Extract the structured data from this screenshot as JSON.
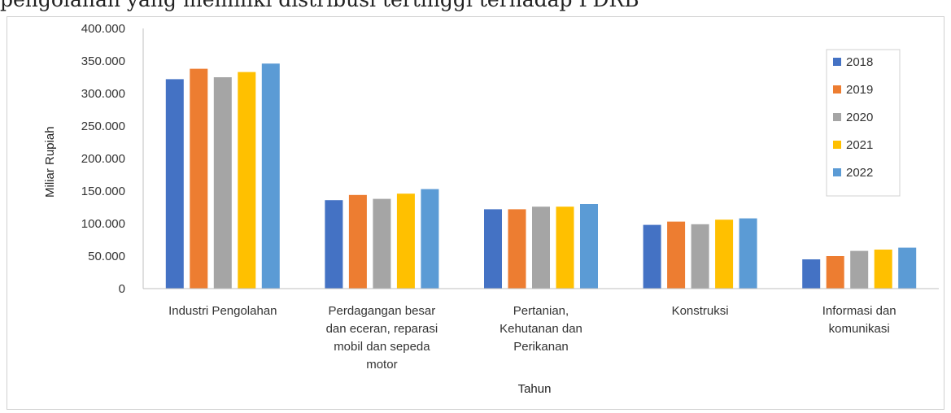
{
  "clipped_text": "pengolahan yang memiliki distribusi tertinggi terhadap PDRB",
  "chart_data": {
    "type": "bar",
    "categories": [
      [
        "Industri Pengolahan"
      ],
      [
        "Perdagangan besar",
        "dan eceran, reparasi",
        "mobil dan sepeda",
        "motor"
      ],
      [
        "Pertanian,",
        "Kehutanan dan",
        "Perikanan"
      ],
      [
        "Konstruksi"
      ],
      [
        "Informasi dan",
        "komunikasi"
      ]
    ],
    "series": [
      {
        "name": "2018",
        "color": "#4472C4",
        "values": [
          322000,
          136000,
          122000,
          98000,
          45000
        ]
      },
      {
        "name": "2019",
        "color": "#ED7D31",
        "values": [
          338000,
          144000,
          122000,
          103000,
          50000
        ]
      },
      {
        "name": "2020",
        "color": "#A5A5A5",
        "values": [
          325000,
          138000,
          126000,
          99000,
          58000
        ]
      },
      {
        "name": "2021",
        "color": "#FFC000",
        "values": [
          333000,
          146000,
          126000,
          106000,
          60000
        ]
      },
      {
        "name": "2022",
        "color": "#5B9BD5",
        "values": [
          346000,
          153000,
          130000,
          108000,
          63000
        ]
      }
    ],
    "ylabel": "Miliar Rupiah",
    "xlabel": "Tahun",
    "ylim": [
      0,
      400000
    ],
    "yticks": [
      "0",
      "50.000",
      "100.000",
      "150.000",
      "200.000",
      "250.000",
      "300.000",
      "350.000",
      "400.000"
    ],
    "legend_position": "right",
    "grid": false
  }
}
